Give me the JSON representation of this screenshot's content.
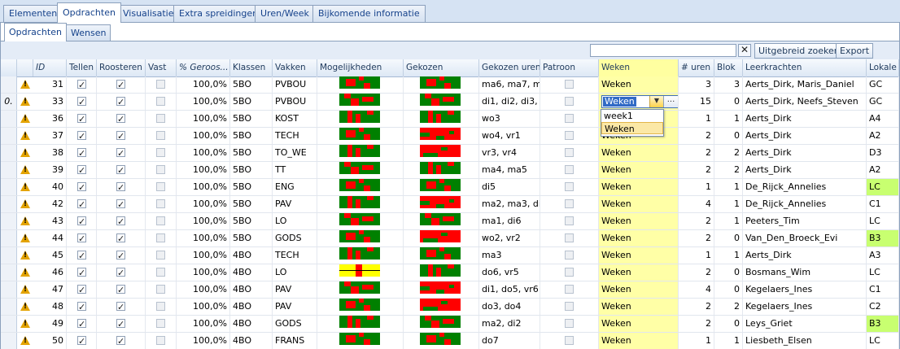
{
  "tabs": [
    "Elementen",
    "Opdrachten",
    "Visualisatie",
    "Extra spreidingen",
    "Uren/Week",
    "Bijkomende informatie"
  ],
  "subtabs": [
    "Opdrachten",
    "Wensen"
  ],
  "toolbar": {
    "search_value": "",
    "clear_label": "✕",
    "advanced_search_label": "Uitgebreid zoeken",
    "export_label": "Export"
  },
  "columns": [
    "ID",
    "Tellen",
    "Roosteren",
    "Vast",
    "% Geroos...",
    "Klassen",
    "Vakken",
    "Mogelijkheden",
    "Gekozen",
    "Gekozen uren",
    "Patroon",
    "Weken",
    "# uren",
    "Blok",
    "Leerkrachten",
    "Lokale"
  ],
  "editing_row_marker": "0.",
  "combo": {
    "value": "Weken",
    "dots": "...",
    "options": [
      "week1",
      "Weken"
    ]
  },
  "colors": {
    "highlight_column": "#ffffa6",
    "green_room": "#c8ff70",
    "bar_green": "#008000",
    "bar_red": "#ff0000",
    "bar_yellow": "#ffff00"
  },
  "rows": [
    {
      "id": "31",
      "tellen": true,
      "roosteren": true,
      "vast": false,
      "pct": "100,0%",
      "klassen": "5BO",
      "vakken": "PVBOU",
      "gekozen_uren": "ma6, ma7, m",
      "patroon": false,
      "weken": "Weken",
      "uren": "3",
      "blok": "3",
      "leerkrachten": "Aerts_Dirk, Maris_Daniel",
      "lokale": "GC",
      "lokale_green": false,
      "mog": "a",
      "gek": "a"
    },
    {
      "id": "33",
      "tellen": true,
      "roosteren": true,
      "vast": false,
      "pct": "100,0%",
      "klassen": "5BO",
      "vakken": "PVBOU",
      "gekozen_uren": "di1, di2, di3,",
      "patroon": false,
      "weken": "",
      "uren": "15",
      "blok": "0",
      "leerkrachten": "Aerts_Dirk, Neefs_Steven",
      "lokale": "GC",
      "lokale_green": false,
      "mog": "b",
      "gek": "b",
      "editing": true
    },
    {
      "id": "36",
      "tellen": true,
      "roosteren": true,
      "vast": false,
      "pct": "100,0%",
      "klassen": "5BO",
      "vakken": "KOST",
      "gekozen_uren": "wo3",
      "patroon": false,
      "weken": "Weken",
      "uren": "1",
      "blok": "1",
      "leerkrachten": "Aerts_Dirk",
      "lokale": "A4",
      "lokale_green": false,
      "mog": "c",
      "gek": "c"
    },
    {
      "id": "37",
      "tellen": true,
      "roosteren": true,
      "vast": false,
      "pct": "100,0%",
      "klassen": "5BO",
      "vakken": "TECH",
      "gekozen_uren": "wo4, vr1",
      "patroon": false,
      "weken": "Weken",
      "uren": "2",
      "blok": "0",
      "leerkrachten": "Aerts_Dirk",
      "lokale": "A2",
      "lokale_green": false,
      "mog": "a",
      "gek": "d"
    },
    {
      "id": "38",
      "tellen": true,
      "roosteren": true,
      "vast": false,
      "pct": "100,0%",
      "klassen": "5BO",
      "vakken": "TO_WE",
      "gekozen_uren": "vr3, vr4",
      "patroon": false,
      "weken": "Weken",
      "uren": "2",
      "blok": "2",
      "leerkrachten": "Aerts_Dirk",
      "lokale": "D3",
      "lokale_green": false,
      "mog": "c",
      "gek": "e"
    },
    {
      "id": "39",
      "tellen": true,
      "roosteren": true,
      "vast": false,
      "pct": "100,0%",
      "klassen": "5BO",
      "vakken": "TT",
      "gekozen_uren": "ma4, ma5",
      "patroon": false,
      "weken": "Weken",
      "uren": "2",
      "blok": "2",
      "leerkrachten": "Aerts_Dirk",
      "lokale": "A2",
      "lokale_green": false,
      "mog": "b",
      "gek": "c"
    },
    {
      "id": "40",
      "tellen": true,
      "roosteren": true,
      "vast": false,
      "pct": "100,0%",
      "klassen": "5BO",
      "vakken": "ENG",
      "gekozen_uren": "di5",
      "patroon": false,
      "weken": "Weken",
      "uren": "1",
      "blok": "1",
      "leerkrachten": "De_Rijck_Annelies",
      "lokale": "LC",
      "lokale_green": true,
      "mog": "a",
      "gek": "a"
    },
    {
      "id": "42",
      "tellen": true,
      "roosteren": true,
      "vast": false,
      "pct": "100,0%",
      "klassen": "5BO",
      "vakken": "PAV",
      "gekozen_uren": "ma2, ma3, di",
      "patroon": false,
      "weken": "Weken",
      "uren": "4",
      "blok": "1",
      "leerkrachten": "De_Rijck_Annelies",
      "lokale": "C1",
      "lokale_green": false,
      "mog": "c",
      "gek": "d"
    },
    {
      "id": "43",
      "tellen": true,
      "roosteren": true,
      "vast": false,
      "pct": "100,0%",
      "klassen": "5BO",
      "vakken": "LO",
      "gekozen_uren": "ma1, di6",
      "patroon": false,
      "weken": "Weken",
      "uren": "2",
      "blok": "1",
      "leerkrachten": "Peeters_Tim",
      "lokale": "LC",
      "lokale_green": false,
      "mog": "b",
      "gek": "b"
    },
    {
      "id": "44",
      "tellen": true,
      "roosteren": true,
      "vast": false,
      "pct": "100,0%",
      "klassen": "5BO",
      "vakken": "GODS",
      "gekozen_uren": "wo2, vr2",
      "patroon": false,
      "weken": "Weken",
      "uren": "2",
      "blok": "0",
      "leerkrachten": "Van_Den_Broeck_Evi",
      "lokale": "B3",
      "lokale_green": true,
      "mog": "a",
      "gek": "e"
    },
    {
      "id": "45",
      "tellen": true,
      "roosteren": true,
      "vast": false,
      "pct": "100,0%",
      "klassen": "4BO",
      "vakken": "TECH",
      "gekozen_uren": "ma3",
      "patroon": false,
      "weken": "Weken",
      "uren": "1",
      "blok": "1",
      "leerkrachten": "Aerts_Dirk",
      "lokale": "A3",
      "lokale_green": false,
      "mog": "c",
      "gek": "a"
    },
    {
      "id": "46",
      "tellen": true,
      "roosteren": true,
      "vast": false,
      "pct": "100,0%",
      "klassen": "4BO",
      "vakken": "LO",
      "gekozen_uren": "do6, vr5",
      "patroon": false,
      "weken": "Weken",
      "uren": "2",
      "blok": "0",
      "leerkrachten": "Bosmans_Wim",
      "lokale": "LC",
      "lokale_green": false,
      "mog": "y",
      "gek": "c"
    },
    {
      "id": "47",
      "tellen": true,
      "roosteren": true,
      "vast": false,
      "pct": "100,0%",
      "klassen": "4BO",
      "vakken": "PAV",
      "gekozen_uren": "di1, do5, vr6",
      "patroon": false,
      "weken": "Weken",
      "uren": "4",
      "blok": "0",
      "leerkrachten": "Kegelaers_Ines",
      "lokale": "C1",
      "lokale_green": false,
      "mog": "b",
      "gek": "d"
    },
    {
      "id": "48",
      "tellen": true,
      "roosteren": true,
      "vast": false,
      "pct": "100,0%",
      "klassen": "4BO",
      "vakken": "PAV",
      "gekozen_uren": "do3, do4",
      "patroon": false,
      "weken": "Weken",
      "uren": "2",
      "blok": "2",
      "leerkrachten": "Kegelaers_Ines",
      "lokale": "C2",
      "lokale_green": false,
      "mog": "a",
      "gek": "e"
    },
    {
      "id": "49",
      "tellen": true,
      "roosteren": true,
      "vast": false,
      "pct": "100,0%",
      "klassen": "4BO",
      "vakken": "GODS",
      "gekozen_uren": "ma2, di2",
      "patroon": false,
      "weken": "Weken",
      "uren": "2",
      "blok": "0",
      "leerkrachten": "Leys_Griet",
      "lokale": "B3",
      "lokale_green": true,
      "mog": "c",
      "gek": "b"
    },
    {
      "id": "50",
      "tellen": true,
      "roosteren": true,
      "vast": false,
      "pct": "100,0%",
      "klassen": "4BO",
      "vakken": "FRANS",
      "gekozen_uren": "do7",
      "patroon": false,
      "weken": "Weken",
      "uren": "1",
      "blok": "1",
      "leerkrachten": "Liesbeth_Elsen",
      "lokale": "LC",
      "lokale_green": false,
      "mog": "a",
      "gek": "a"
    }
  ]
}
